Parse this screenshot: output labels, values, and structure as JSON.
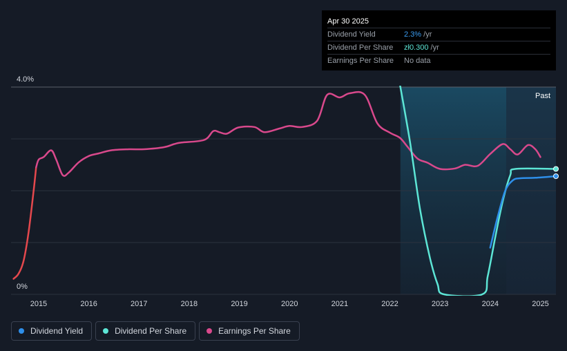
{
  "tooltip": {
    "date": "Apr 30 2025",
    "rows": [
      {
        "label": "Dividend Yield",
        "value": "2.3%",
        "unit": " /yr",
        "color": "#3b9cf0"
      },
      {
        "label": "Dividend Per Share",
        "value": "zł0.300",
        "unit": " /yr",
        "color": "#5de6d6"
      },
      {
        "label": "Earnings Per Share",
        "value": "",
        "unit": "No data",
        "color": "#7f8590"
      }
    ]
  },
  "legend": [
    {
      "label": "Dividend Yield",
      "color": "#2e8fea"
    },
    {
      "label": "Dividend Per Share",
      "color": "#5de6d6"
    },
    {
      "label": "Earnings Per Share",
      "color": "#d9498c"
    }
  ],
  "chart_data": {
    "type": "line",
    "ylim": [
      0,
      4.0
    ],
    "xlim": [
      2014.45,
      2025.31
    ],
    "y_tick_labels": [
      {
        "value": 4.0,
        "label": "4.0%"
      },
      {
        "value": 0,
        "label": "0%"
      }
    ],
    "gridlines_y": [
      4.0,
      3.0,
      2.0,
      1.0,
      0
    ],
    "x_ticks": [
      2015,
      2016,
      2017,
      2018,
      2019,
      2020,
      2021,
      2022,
      2023,
      2024,
      2025
    ],
    "past_label": "Past",
    "past_from": 2024.32,
    "dividend_shading_from": 2022.21,
    "series": [
      {
        "name": "Earnings Per Share",
        "color": "#d9498c",
        "early_color": "#e5484d",
        "early_until": 2014.95,
        "points": [
          [
            2014.5,
            0.3
          ],
          [
            2014.6,
            0.4
          ],
          [
            2014.7,
            0.65
          ],
          [
            2014.8,
            1.2
          ],
          [
            2014.9,
            2.0
          ],
          [
            2014.95,
            2.45
          ],
          [
            2015.0,
            2.6
          ],
          [
            2015.1,
            2.65
          ],
          [
            2015.25,
            2.78
          ],
          [
            2015.35,
            2.6
          ],
          [
            2015.48,
            2.3
          ],
          [
            2015.6,
            2.35
          ],
          [
            2015.8,
            2.55
          ],
          [
            2016.0,
            2.67
          ],
          [
            2016.2,
            2.72
          ],
          [
            2016.45,
            2.78
          ],
          [
            2016.8,
            2.8
          ],
          [
            2017.1,
            2.8
          ],
          [
            2017.5,
            2.84
          ],
          [
            2017.7,
            2.9
          ],
          [
            2017.85,
            2.93
          ],
          [
            2018.3,
            2.98
          ],
          [
            2018.48,
            3.15
          ],
          [
            2018.6,
            3.13
          ],
          [
            2018.75,
            3.1
          ],
          [
            2018.98,
            3.22
          ],
          [
            2019.3,
            3.23
          ],
          [
            2019.5,
            3.13
          ],
          [
            2019.8,
            3.2
          ],
          [
            2020.0,
            3.25
          ],
          [
            2020.25,
            3.23
          ],
          [
            2020.55,
            3.35
          ],
          [
            2020.75,
            3.85
          ],
          [
            2021.0,
            3.8
          ],
          [
            2021.2,
            3.88
          ],
          [
            2021.5,
            3.85
          ],
          [
            2021.75,
            3.3
          ],
          [
            2022.0,
            3.12
          ],
          [
            2022.2,
            3.02
          ],
          [
            2022.35,
            2.85
          ],
          [
            2022.55,
            2.62
          ],
          [
            2022.75,
            2.54
          ],
          [
            2023.0,
            2.42
          ],
          [
            2023.3,
            2.43
          ],
          [
            2023.5,
            2.5
          ],
          [
            2023.75,
            2.48
          ],
          [
            2024.0,
            2.71
          ],
          [
            2024.25,
            2.9
          ],
          [
            2024.4,
            2.8
          ],
          [
            2024.55,
            2.7
          ],
          [
            2024.75,
            2.88
          ],
          [
            2024.9,
            2.8
          ],
          [
            2025.0,
            2.65
          ]
        ]
      },
      {
        "name": "Dividend Per Share",
        "color": "#5de6d6",
        "points": [
          [
            2022.2,
            4.05
          ],
          [
            2022.4,
            2.95
          ],
          [
            2022.6,
            1.65
          ],
          [
            2022.8,
            0.7
          ],
          [
            2022.95,
            0.2
          ],
          [
            2023.08,
            0.0
          ],
          [
            2023.84,
            0.0
          ],
          [
            2023.95,
            0.35
          ],
          [
            2024.1,
            1.1
          ],
          [
            2024.25,
            1.8
          ],
          [
            2024.4,
            2.3
          ],
          [
            2024.5,
            2.42
          ],
          [
            2025.31,
            2.42
          ]
        ]
      },
      {
        "name": "Dividend Yield",
        "color": "#2e8fea",
        "points": [
          [
            2024.0,
            0.9
          ],
          [
            2024.15,
            1.5
          ],
          [
            2024.3,
            2.0
          ],
          [
            2024.45,
            2.2
          ],
          [
            2024.6,
            2.24
          ],
          [
            2024.9,
            2.25
          ],
          [
            2025.31,
            2.28
          ]
        ]
      }
    ]
  }
}
